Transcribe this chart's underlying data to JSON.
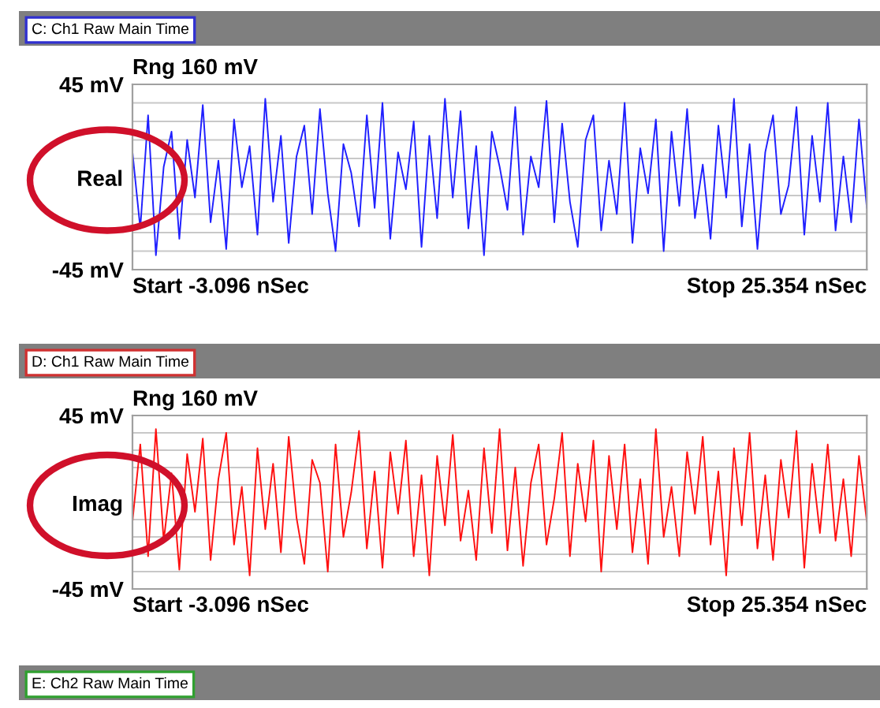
{
  "chart_data": [
    {
      "type": "line",
      "title": "C: Ch1 Raw Main Time",
      "subtitle": "Rng 160 mV",
      "ylabel": "Real",
      "annotations": [
        "Start -3.096 nSec",
        "Stop 25.354 nSec"
      ],
      "ylim": [
        -45,
        45
      ],
      "yticks": [
        {
          "value": 45,
          "label": "45 mV"
        },
        {
          "value": 36,
          "label": null
        },
        {
          "value": 27,
          "label": null
        },
        {
          "value": 18,
          "label": null
        },
        {
          "value": 9,
          "label": null
        },
        {
          "value": 0,
          "label": null
        },
        {
          "value": -9,
          "label": null
        },
        {
          "value": -18,
          "label": null
        },
        {
          "value": -27,
          "label": null
        },
        {
          "value": -36,
          "label": null
        },
        {
          "value": -45,
          "label": "-45 mV"
        }
      ],
      "grid": "y",
      "categories": [
        null,
        null,
        null,
        null,
        null,
        null,
        null,
        null,
        null,
        null,
        null,
        null,
        null,
        null,
        null,
        null,
        null,
        null,
        null,
        null,
        null,
        null,
        null,
        null,
        null,
        null,
        null,
        null,
        null,
        null,
        null,
        null,
        null,
        null,
        null,
        null,
        null,
        null,
        null,
        null,
        null,
        null,
        null,
        null,
        null,
        null,
        null,
        null,
        null,
        null,
        null,
        null,
        null,
        null,
        null,
        null,
        null,
        null,
        null,
        null,
        null,
        null,
        null,
        null,
        null,
        null,
        null,
        null,
        null,
        null,
        null,
        null,
        null,
        null,
        null,
        null,
        null,
        null,
        null,
        null,
        null,
        null,
        null,
        null,
        null,
        null,
        null,
        null,
        null,
        null,
        null,
        null,
        null,
        null,
        null
      ],
      "series": [
        {
          "color": "#1f1fff",
          "values": [
            12,
            -25,
            30,
            -38,
            5,
            22,
            -30,
            18,
            -10,
            35,
            -22,
            8,
            -35,
            28,
            -5,
            15,
            -28,
            38,
            -12,
            20,
            -32,
            10,
            25,
            -18,
            33,
            -8,
            -36,
            16,
            2,
            -24,
            30,
            -15,
            36,
            -30,
            12,
            -6,
            27,
            -34,
            20,
            -20,
            38,
            -10,
            32,
            -25,
            15,
            -38,
            22,
            5,
            -16,
            34,
            -28,
            10,
            -5,
            37,
            -22,
            26,
            -12,
            -34,
            18,
            30,
            -26,
            8,
            -18,
            36,
            -32,
            14,
            -8,
            28,
            -36,
            22,
            -14,
            33,
            -20,
            6,
            -30,
            25,
            -10,
            38,
            -24,
            16,
            -35,
            12,
            30,
            -18,
            -4,
            34,
            -28,
            20,
            -12,
            36,
            -26,
            10,
            -22,
            28,
            -15
          ]
        }
      ]
    },
    {
      "type": "line",
      "title": "D: Ch1 Raw Main Time",
      "subtitle": "Rng 160 mV",
      "ylabel": "Imag",
      "annotations": [
        "Start -3.096 nSec",
        "Stop 25.354 nSec"
      ],
      "ylim": [
        -45,
        45
      ],
      "yticks": [
        {
          "value": 45,
          "label": "45 mV"
        },
        {
          "value": 36,
          "label": null
        },
        {
          "value": 27,
          "label": null
        },
        {
          "value": 18,
          "label": null
        },
        {
          "value": 9,
          "label": null
        },
        {
          "value": 0,
          "label": null
        },
        {
          "value": -9,
          "label": null
        },
        {
          "value": -18,
          "label": null
        },
        {
          "value": -27,
          "label": null
        },
        {
          "value": -36,
          "label": null
        },
        {
          "value": -45,
          "label": "-45 mV"
        }
      ],
      "grid": "y",
      "categories": [
        null,
        null,
        null,
        null,
        null,
        null,
        null,
        null,
        null,
        null,
        null,
        null,
        null,
        null,
        null,
        null,
        null,
        null,
        null,
        null,
        null,
        null,
        null,
        null,
        null,
        null,
        null,
        null,
        null,
        null,
        null,
        null,
        null,
        null,
        null,
        null,
        null,
        null,
        null,
        null,
        null,
        null,
        null,
        null,
        null,
        null,
        null,
        null,
        null,
        null,
        null,
        null,
        null,
        null,
        null,
        null,
        null,
        null,
        null,
        null,
        null,
        null,
        null,
        null,
        null,
        null,
        null,
        null,
        null,
        null,
        null,
        null,
        null,
        null,
        null,
        null,
        null,
        null,
        null,
        null,
        null,
        null,
        null,
        null,
        null,
        null,
        null,
        null,
        null,
        null,
        null,
        null,
        null,
        null,
        null
      ],
      "series": [
        {
          "color": "#ff1010",
          "values": [
            -10,
            30,
            -28,
            38,
            -20,
            15,
            -35,
            25,
            -5,
            33,
            -30,
            12,
            36,
            -22,
            8,
            -38,
            28,
            -14,
            20,
            -26,
            34,
            -8,
            -32,
            22,
            10,
            -36,
            30,
            -18,
            5,
            37,
            -24,
            16,
            -34,
            26,
            -6,
            32,
            -28,
            14,
            -38,
            24,
            -12,
            35,
            -20,
            6,
            -30,
            28,
            -16,
            38,
            -25,
            18,
            -33,
            10,
            30,
            -22,
            2,
            36,
            -28,
            20,
            -10,
            32,
            -36,
            24,
            -14,
            30,
            -26,
            12,
            -32,
            38,
            -18,
            8,
            -28,
            26,
            -6,
            34,
            -22,
            16,
            -38,
            28,
            -12,
            36,
            -24,
            14,
            -30,
            22,
            -8,
            37,
            -34,
            20,
            -16,
            30,
            -20,
            12,
            -28,
            24,
            -10
          ]
        }
      ]
    },
    {
      "type": "other",
      "title": "E: Ch2 Raw Main Time"
    }
  ]
}
